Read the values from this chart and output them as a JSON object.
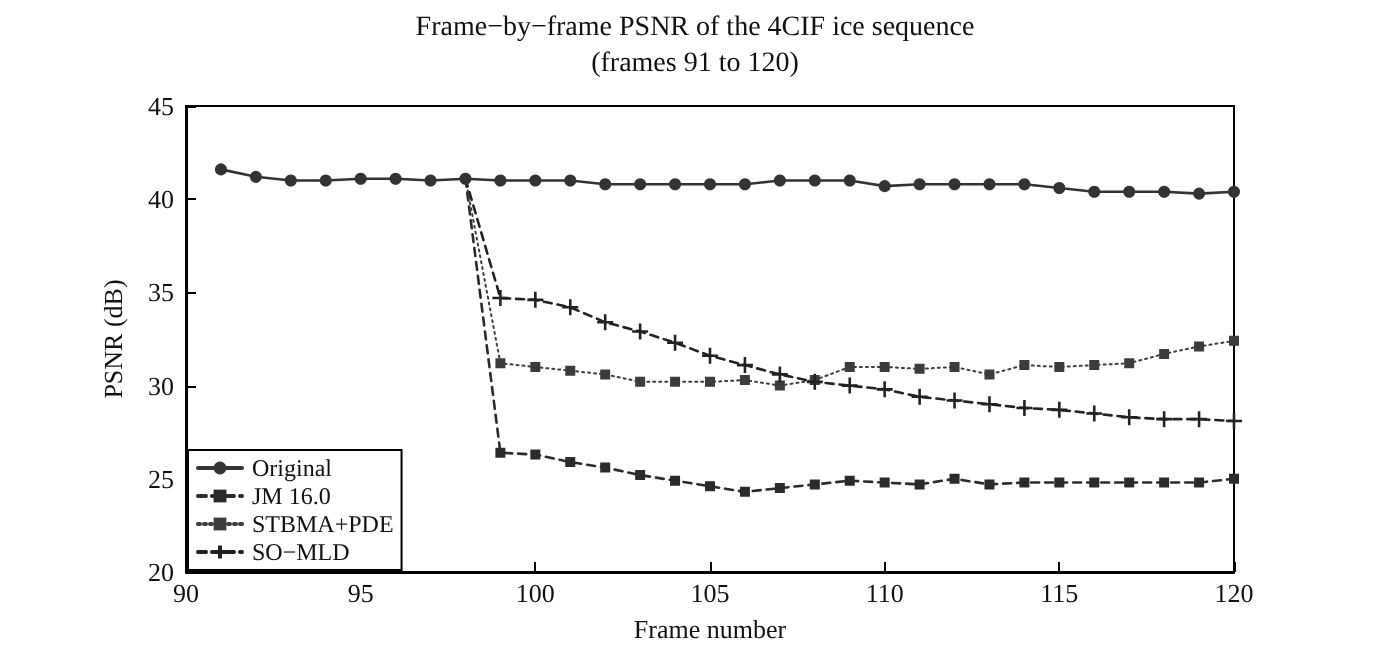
{
  "chart_data": {
    "type": "line",
    "title": "Frame−by−frame PSNR of the 4CIF ice sequence",
    "subtitle": "(frames 91 to 120)",
    "xlabel": "Frame number",
    "ylabel": "PSNR (dB)",
    "x": [
      91,
      92,
      93,
      94,
      95,
      96,
      97,
      98,
      99,
      100,
      101,
      102,
      103,
      104,
      105,
      106,
      107,
      108,
      109,
      110,
      111,
      112,
      113,
      114,
      115,
      116,
      117,
      118,
      119,
      120
    ],
    "series": [
      {
        "name": "Original",
        "color": "#333333",
        "marker": "circle",
        "line_style": "solid",
        "values": [
          41.6,
          41.2,
          41.0,
          41.0,
          41.1,
          41.1,
          41.0,
          41.1,
          41.0,
          41.0,
          41.0,
          40.8,
          40.8,
          40.8,
          40.8,
          40.8,
          41.0,
          41.0,
          41.0,
          40.7,
          40.8,
          40.8,
          40.8,
          40.8,
          40.6,
          40.4,
          40.4,
          40.4,
          40.3,
          40.4
        ]
      },
      {
        "name": "JM 16.0",
        "color": "#2b2b2b",
        "marker": "square",
        "line_style": "dashed",
        "values": [
          null,
          null,
          null,
          null,
          null,
          null,
          null,
          41.1,
          26.4,
          26.3,
          25.9,
          25.6,
          25.2,
          24.9,
          24.6,
          24.3,
          24.5,
          24.7,
          24.9,
          24.8,
          24.7,
          25.0,
          24.7,
          24.8,
          24.8,
          24.8,
          24.8,
          24.8,
          24.8,
          25.0
        ]
      },
      {
        "name": "STBMA+PDE",
        "color": "#3c3c3c",
        "marker": "square",
        "line_style": "dotted",
        "values": [
          null,
          null,
          null,
          null,
          null,
          null,
          null,
          41.1,
          31.2,
          31.0,
          30.8,
          30.6,
          30.2,
          30.2,
          30.2,
          30.3,
          30.0,
          30.3,
          31.0,
          31.0,
          30.9,
          31.0,
          30.6,
          31.1,
          31.0,
          31.1,
          31.2,
          31.7,
          32.1,
          32.4
        ]
      },
      {
        "name": "SO−MLD",
        "color": "#222222",
        "marker": "cross",
        "line_style": "dashed",
        "values": [
          null,
          null,
          null,
          null,
          null,
          null,
          null,
          41.1,
          34.7,
          34.6,
          34.2,
          33.4,
          32.9,
          32.3,
          31.6,
          31.1,
          30.6,
          30.2,
          30.0,
          29.8,
          29.4,
          29.2,
          29.0,
          28.8,
          28.7,
          28.5,
          28.3,
          28.2,
          28.2,
          28.1
        ]
      }
    ],
    "xlim": [
      90,
      120
    ],
    "xticks": [
      90,
      95,
      100,
      105,
      110,
      115,
      120
    ],
    "ylim": [
      20,
      45
    ],
    "yticks": [
      20,
      25,
      30,
      35,
      40,
      45
    ],
    "legend": "bottom left"
  }
}
